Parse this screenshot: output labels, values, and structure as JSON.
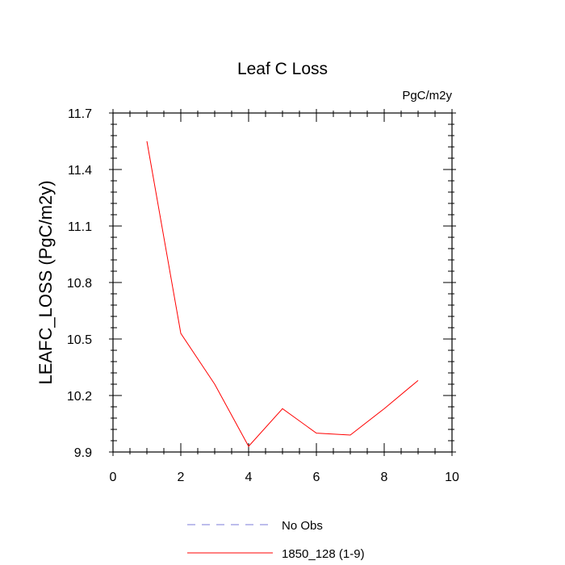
{
  "chart_data": {
    "type": "line",
    "title": "Leaf C Loss",
    "units": "PgC/m2y",
    "xlabel": "",
    "ylabel": "LEAFC_LOSS  (PgC/m2y)",
    "xlim": [
      0,
      10
    ],
    "ylim": [
      9.9,
      11.7
    ],
    "xticks": [
      0,
      2,
      4,
      6,
      8,
      10
    ],
    "xtick_labels": [
      "0",
      "2",
      "4",
      "6",
      "8",
      "10"
    ],
    "yticks": [
      9.9,
      10.2,
      10.5,
      10.8,
      11.1,
      11.4,
      11.7
    ],
    "ytick_labels": [
      "9.9",
      "10.2",
      "10.5",
      "10.8",
      "11.1",
      "11.4",
      "11.7"
    ],
    "grid": false,
    "legend_position": "bottom",
    "series": [
      {
        "name": "No Obs",
        "color": "#7b7bd8",
        "dashed": true,
        "x": [],
        "y": []
      },
      {
        "name": "1850_128 (1-9)",
        "color": "#ff0000",
        "dashed": false,
        "x": [
          1,
          2,
          3,
          4,
          5,
          6,
          7,
          8,
          9
        ],
        "y": [
          11.55,
          10.53,
          10.26,
          9.93,
          10.13,
          10.0,
          9.99,
          10.13,
          10.28
        ]
      }
    ]
  }
}
